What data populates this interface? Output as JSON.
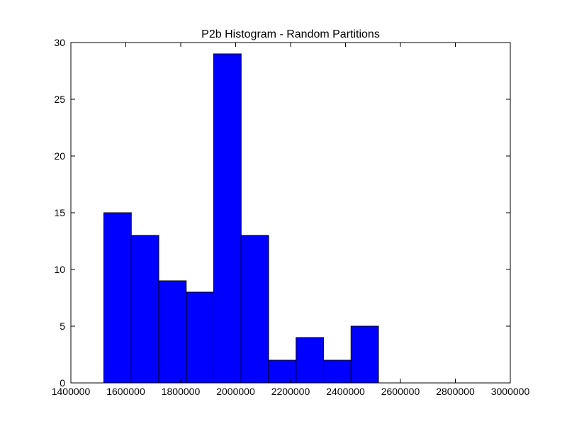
{
  "chart_data": {
    "type": "bar",
    "title": "P2b Histogram - Random Partitions",
    "xlabel": "",
    "ylabel": "",
    "xlim": [
      1400000,
      3000000
    ],
    "ylim": [
      0,
      30
    ],
    "xticks": [
      1400000,
      1600000,
      1800000,
      2000000,
      2200000,
      2400000,
      2600000,
      2800000,
      3000000
    ],
    "xtick_labels": [
      "1400000",
      "1600000",
      "1800000",
      "2000000",
      "2200000",
      "2400000",
      "2600000",
      "2800000",
      "3000000"
    ],
    "yticks": [
      0,
      5,
      10,
      15,
      20,
      25,
      30
    ],
    "ytick_labels": [
      "0",
      "5",
      "10",
      "15",
      "20",
      "25",
      "30"
    ],
    "bin_edges": [
      1520000,
      1620000,
      1720000,
      1820000,
      1920000,
      2020000,
      2120000,
      2220000,
      2320000,
      2420000,
      2520000
    ],
    "values": [
      15,
      13,
      9,
      8,
      29,
      13,
      2,
      4,
      2,
      5
    ],
    "bar_color": "#0000ff",
    "edge_color": "#000000",
    "grid": false,
    "legend": "none"
  }
}
